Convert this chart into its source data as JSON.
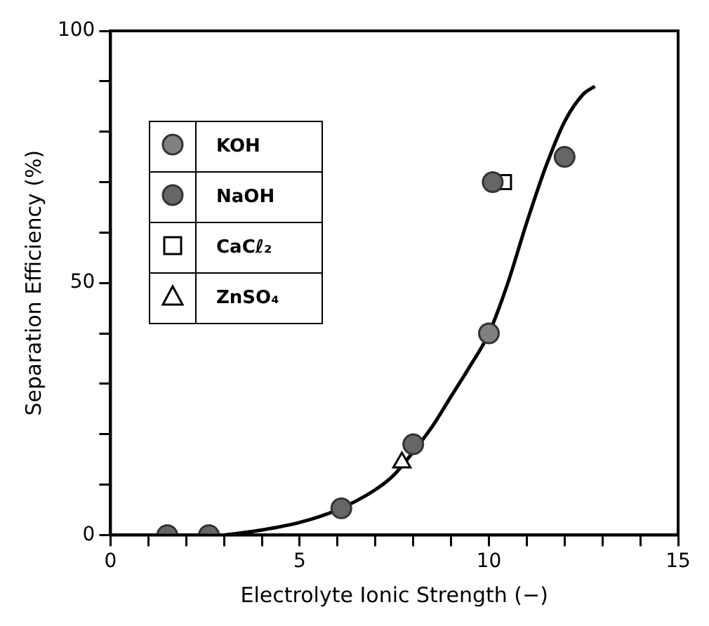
{
  "chart_data": {
    "type": "scatter",
    "xlabel": "Electrolyte Ionic Strength (−)",
    "ylabel": "Separation Efficiency (%)",
    "xlim": [
      0,
      15
    ],
    "ylim": [
      0,
      100
    ],
    "xticks": [
      0,
      {
        "value": 1,
        "label": null
      },
      {
        "value": 2,
        "label": null
      },
      {
        "value": 3,
        "label": null
      },
      {
        "value": 4,
        "label": null
      },
      5,
      {
        "value": 6,
        "label": null
      },
      {
        "value": 7,
        "label": null
      },
      {
        "value": 8,
        "label": null
      },
      {
        "value": 9,
        "label": null
      },
      10,
      {
        "value": 11,
        "label": null
      },
      {
        "value": 12,
        "label": null
      },
      {
        "value": 13,
        "label": null
      },
      {
        "value": 14,
        "label": null
      },
      15
    ],
    "yticks": [
      0,
      {
        "value": 10,
        "label": null
      },
      {
        "value": 20,
        "label": null
      },
      {
        "value": 30,
        "label": null
      },
      {
        "value": 40,
        "label": null
      },
      50,
      {
        "value": 60,
        "label": null
      },
      {
        "value": 70,
        "label": null
      },
      {
        "value": 80,
        "label": null
      },
      {
        "value": 90,
        "label": null
      },
      100
    ],
    "grid": false,
    "legend": "top left",
    "series": [
      {
        "name": "KOH",
        "marker": "circle",
        "color": "#808080",
        "x": [
          10
        ],
        "values": [
          40
        ]
      },
      {
        "name": "NaOH",
        "marker": "circle",
        "color": "#666666",
        "x": [
          1.5,
          2.6,
          6.1,
          8.0,
          10.1,
          12
        ],
        "values": [
          0,
          0,
          5.3,
          18,
          70,
          75
        ]
      },
      {
        "name": "CaCℓ₂",
        "marker": "square",
        "color": "#000000",
        "x": [
          10.4
        ],
        "values": [
          70
        ]
      },
      {
        "name": "ZnSO₄",
        "marker": "triangle",
        "color": "#000000",
        "x": [
          7.7
        ],
        "values": [
          14.4
        ]
      },
      {
        "type": "line",
        "marker": "none",
        "color": "#000000",
        "x": [
          3,
          4,
          5,
          6,
          7,
          7.5,
          8,
          8.5,
          9,
          9.5,
          10,
          10.5,
          11,
          11.5,
          12,
          12.5,
          12.8
        ],
        "values": [
          0,
          1,
          2.5,
          5,
          9,
          12,
          16.5,
          21.5,
          27.5,
          33.5,
          40,
          50,
          62,
          73,
          82,
          87.5,
          89
        ]
      }
    ]
  }
}
